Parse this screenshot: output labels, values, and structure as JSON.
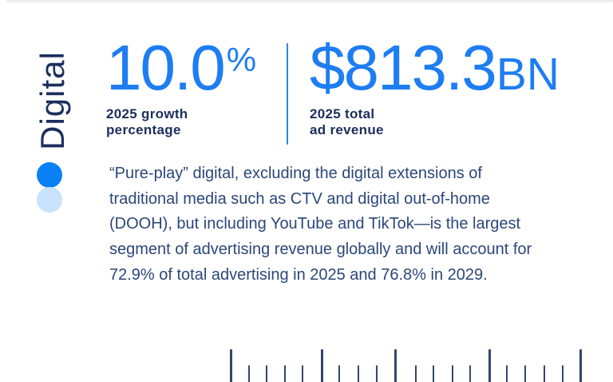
{
  "page": {
    "background_color": "#ffffff",
    "top_edge_rule_color": "#ececec"
  },
  "colors": {
    "accent_blue": "#1e7df2",
    "heading_navy": "#1c2e5c",
    "body_navy": "#2b4779",
    "dot_blue": "#0a80f5",
    "dot_light_blue": "#c9e2fd",
    "tick_navy": "#35466a"
  },
  "category": {
    "label": "Digital"
  },
  "stats": {
    "growth": {
      "value": "10.0",
      "suffix": "%",
      "label": "2025 growth\npercentage"
    },
    "revenue": {
      "value": "$813.3",
      "unit": "BN",
      "label": "2025 total\nad revenue"
    }
  },
  "description": "“Pure-play” digital, excluding the digital extensions of\ntraditional media such as CTV and digital out-of-home\n(DOOH), but including YouTube and TikTok—is the largest\nsegment of advertising revenue globally and will account for\n72.9% of total advertising in 2025 and 76.8% in 2029.",
  "ruler": {
    "tall_tick_positions": [
      289,
      403,
      495,
      613,
      727
    ],
    "short_tick_positions": [
      312,
      334,
      357,
      379,
      425,
      449,
      472,
      521,
      543,
      567,
      589,
      635,
      658,
      682,
      705
    ]
  }
}
